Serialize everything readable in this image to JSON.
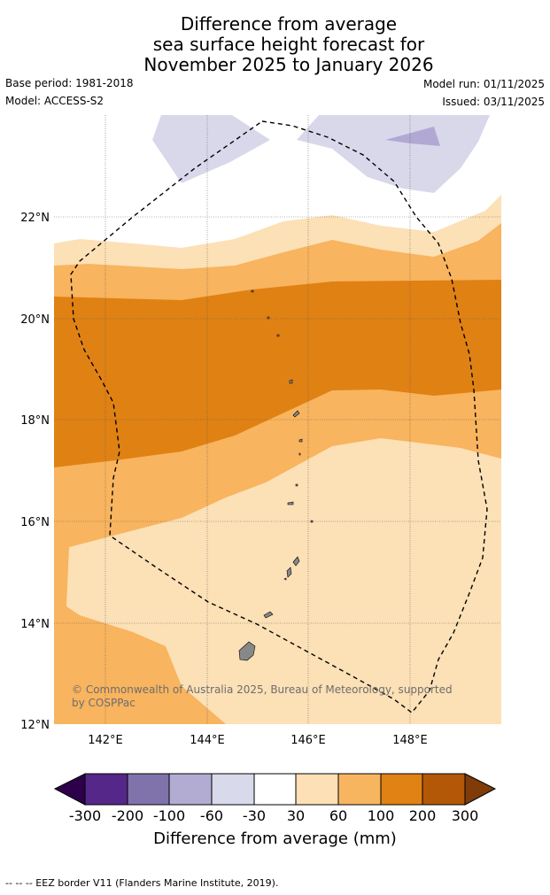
{
  "title": {
    "line1": "Difference from average",
    "line2": "sea surface height forecast for",
    "line3": "November 2025 to January 2026"
  },
  "meta": {
    "base_period": "Base period: 1981-2018",
    "model": "Model: ACCESS-S2",
    "model_run": "Model run: 01/11/2025",
    "issued": "Issued: 03/11/2025"
  },
  "map": {
    "lat_labels": [
      "22°N",
      "20°N",
      "18°N",
      "16°N",
      "14°N",
      "12°N"
    ],
    "lon_labels": [
      "142°E",
      "144°E",
      "146°E",
      "148°E"
    ],
    "copyright": "© Commonwealth of Australia 2025, Bureau of Meteorology, supported by COSPPac",
    "colors": {
      "neg_light": "#d8d8ea",
      "neg_mid": "#b1a9d4",
      "pos_30": "#fce0b6",
      "pos_60": "#f8b45e",
      "pos_100": "#e08114",
      "land": "#888888"
    }
  },
  "colorbar": {
    "ticks": [
      "-300",
      "-200",
      "-100",
      "-60",
      "-30",
      "30",
      "60",
      "100",
      "200",
      "300"
    ],
    "colors": [
      "#2d004b",
      "#542788",
      "#8073ac",
      "#b2abd2",
      "#d8daeb",
      "#ffffff",
      "#fde0b6",
      "#f8b560",
      "#e08214",
      "#b35806",
      "#7f3b08"
    ],
    "label": "Difference from average (mm)"
  },
  "footer": "--  --  -- EEZ border V11 (Flanders Marine Institute, 2019)."
}
